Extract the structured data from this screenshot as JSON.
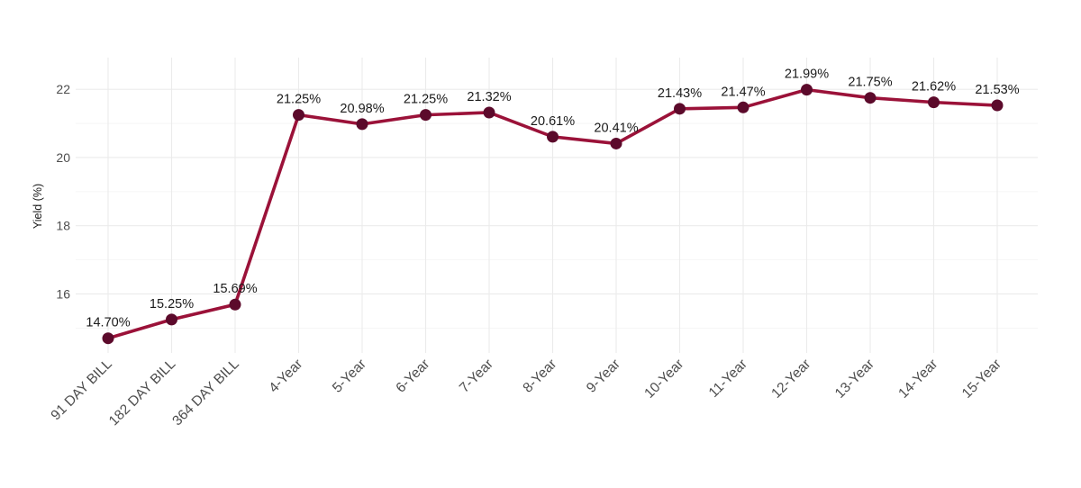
{
  "chart_data": {
    "type": "line",
    "title": "",
    "xlabel": "",
    "ylabel": "Yield (%)",
    "categories": [
      "91 DAY BILL",
      "182 DAY BILL",
      "364 DAY BILL",
      "4-Year",
      "5-Year",
      "6-Year",
      "7-Year",
      "8-Year",
      "9-Year",
      "10-Year",
      "11-Year",
      "12-Year",
      "13-Year",
      "14-Year",
      "15-Year"
    ],
    "series": [
      {
        "values": [
          14.7,
          15.25,
          15.69,
          21.25,
          20.98,
          21.25,
          21.32,
          20.61,
          20.41,
          21.43,
          21.47,
          21.99,
          21.75,
          21.62,
          21.53
        ],
        "labels": [
          "14.70%",
          "15.25%",
          "15.69%",
          "21.25%",
          "20.98%",
          "21.25%",
          "21.32%",
          "20.61%",
          "20.41%",
          "21.43%",
          "21.47%",
          "21.99%",
          "21.75%",
          "21.62%",
          "21.53%"
        ]
      }
    ],
    "yticks": [
      16,
      18,
      20,
      22
    ],
    "ytick_labels": [
      "16",
      "18",
      "20",
      "22"
    ],
    "ylim": [
      14.27,
      22.93
    ],
    "grid": true,
    "legend": "none",
    "colors": {
      "line": "#9b1239",
      "marker": "#5c0a2b",
      "grid": "#ebebeb",
      "background": "#ffffff"
    }
  }
}
